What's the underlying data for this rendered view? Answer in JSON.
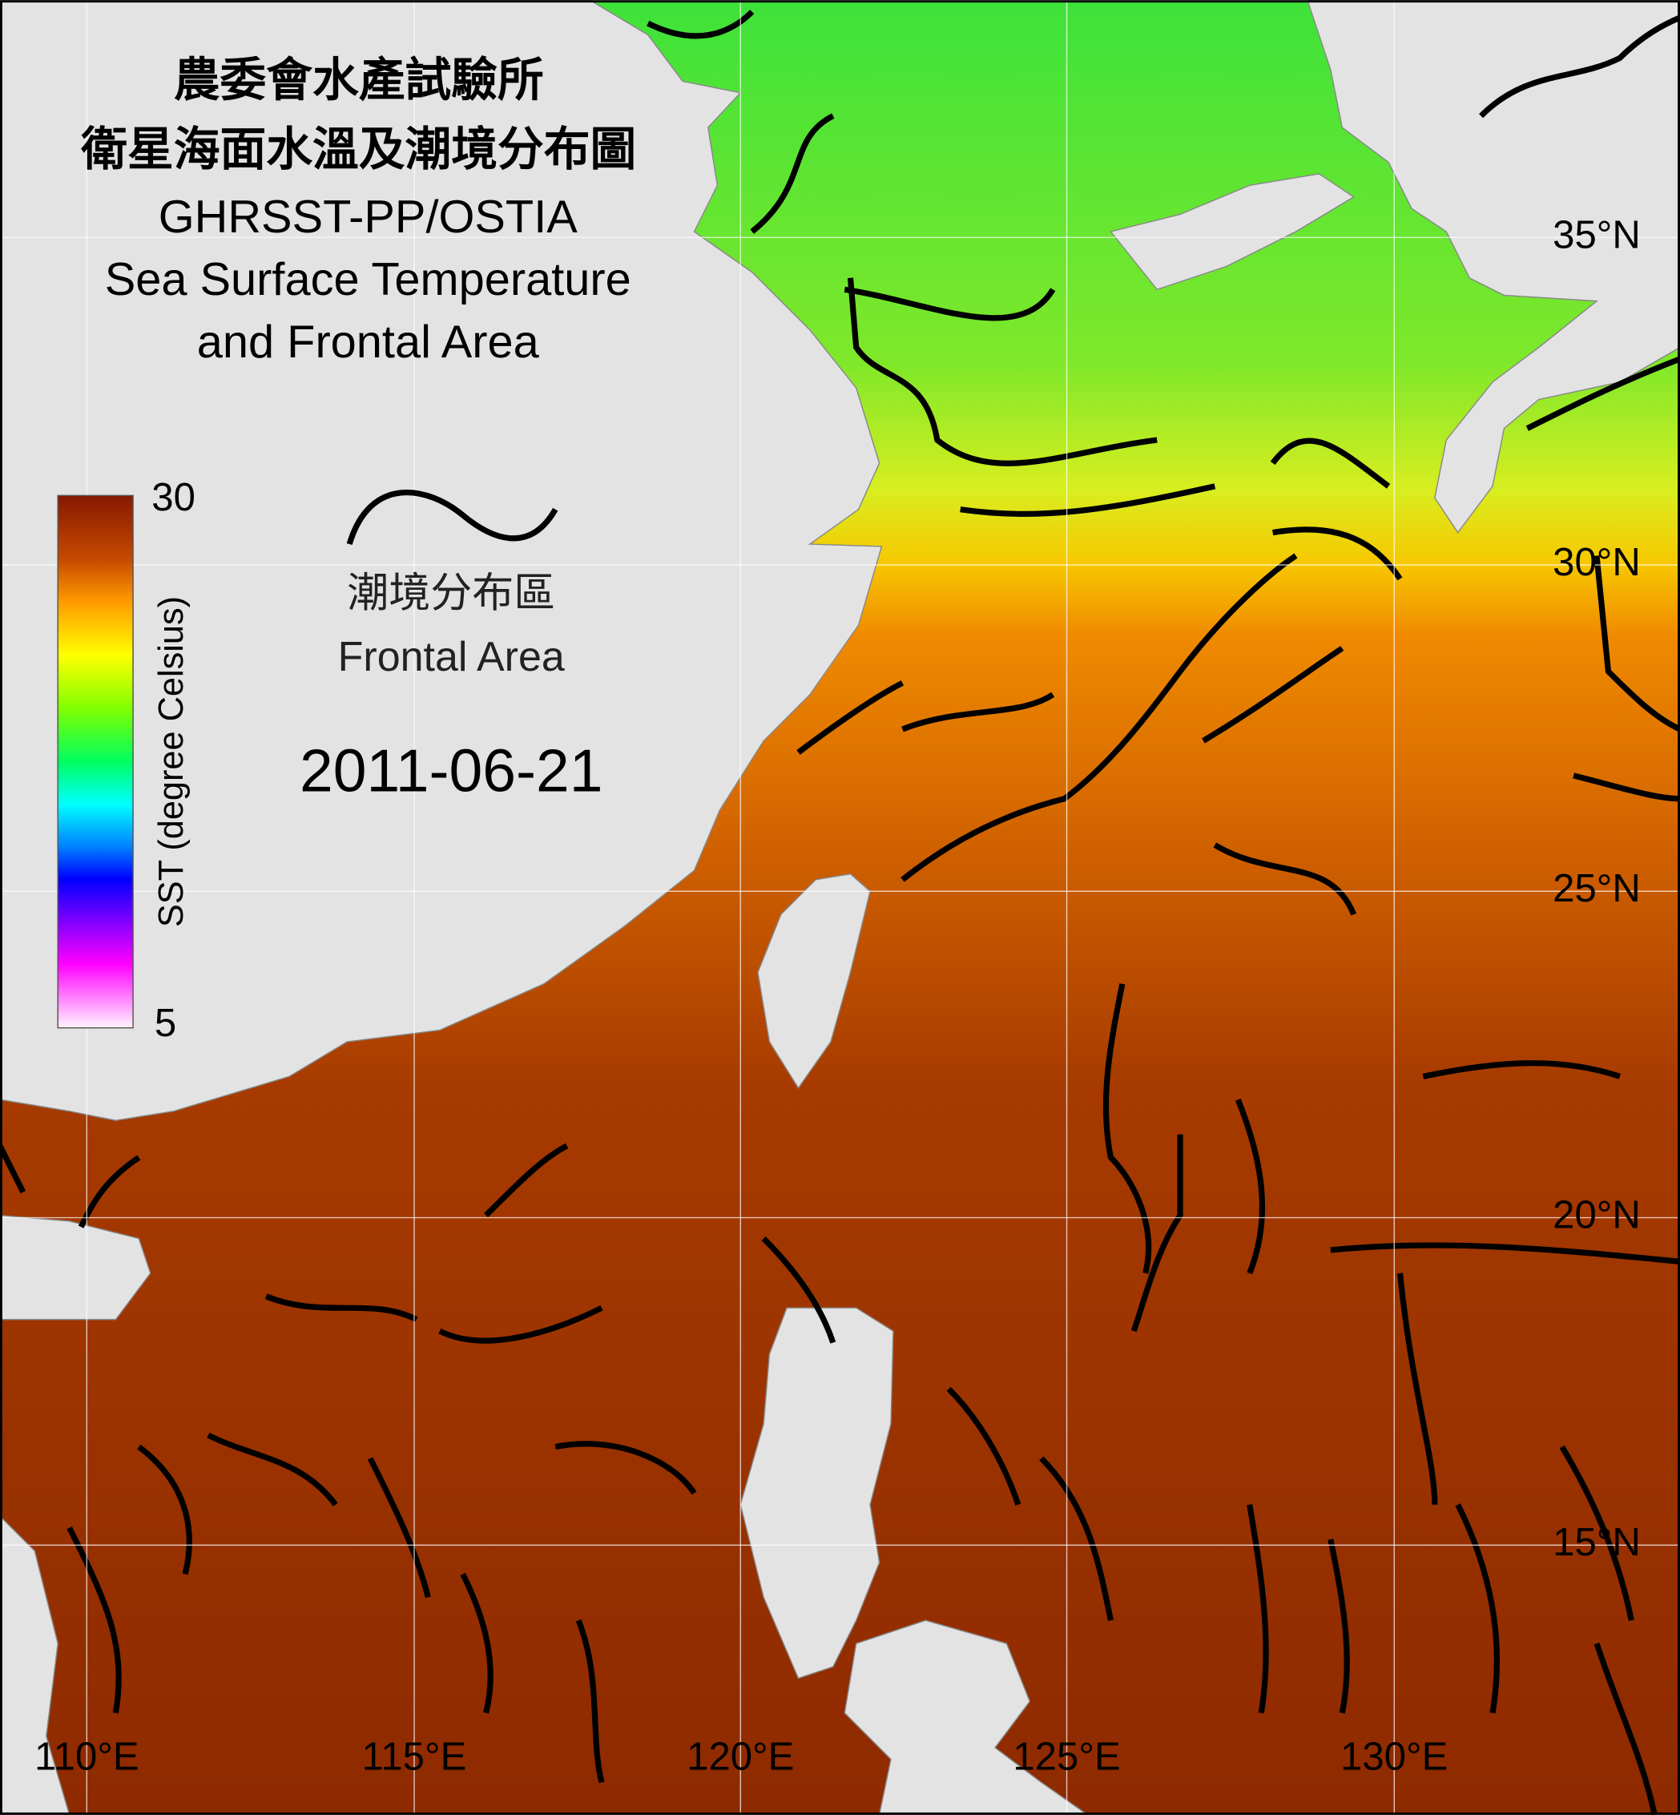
{
  "title": {
    "lines": [
      "農委會水產試驗所",
      "衛星海面水溫及潮境分布圖",
      "GHRSST-PP/OSTIA",
      "Sea Surface Temperature",
      "and Frontal Area"
    ]
  },
  "colorbar": {
    "label": "SST (degree Celsius)",
    "max": "30",
    "min": "5"
  },
  "legend": {
    "label_zh": "潮境分布區",
    "label_en": "Frontal Area"
  },
  "date": "2011-06-21",
  "grid": {
    "lat_labels": [
      "35°N",
      "30°N",
      "25°N",
      "20°N",
      "15°N"
    ],
    "lon_labels": [
      "110°E",
      "115°E",
      "120°E",
      "125°E",
      "130°E"
    ]
  }
}
